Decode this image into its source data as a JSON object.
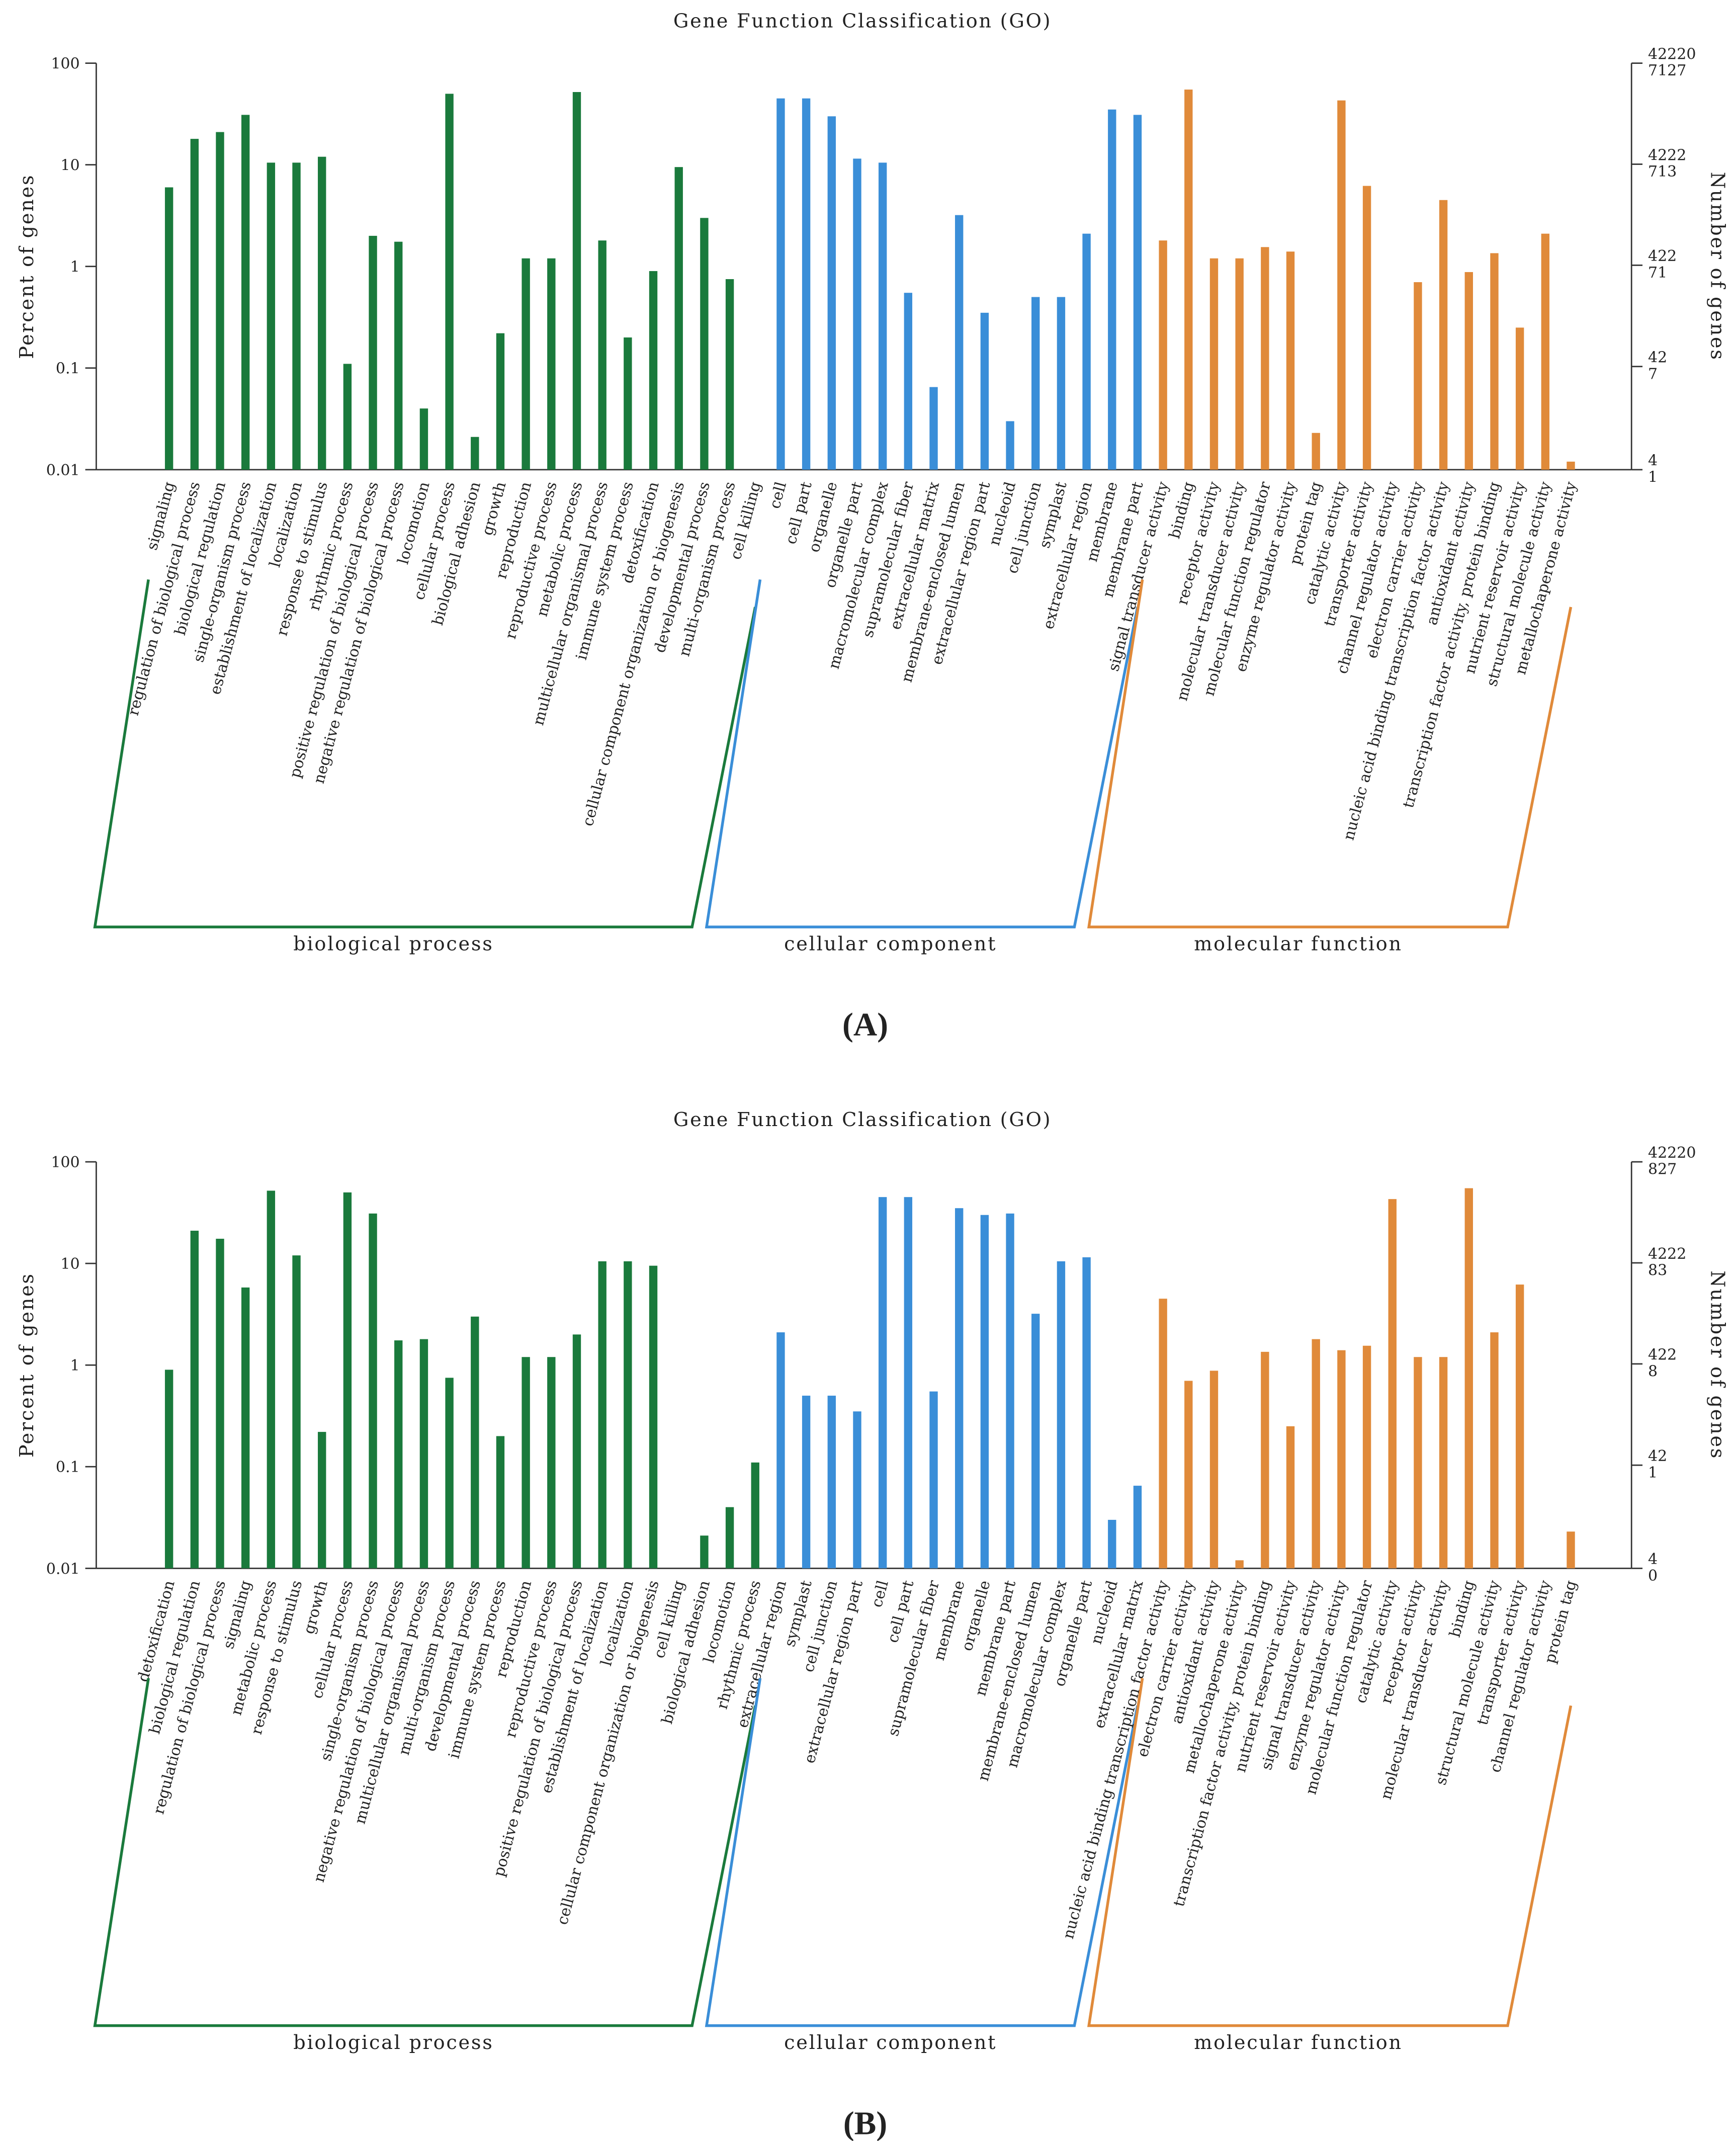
{
  "chart_data": [
    {
      "type": "bar",
      "title": "Gene Function Classification (GO)",
      "panel_label": "(A)",
      "ylabel": "Percent of genes",
      "y2label": "Number of genes",
      "log": true,
      "ylim": [
        0.01,
        100
      ],
      "yticks": [
        0.01,
        0.1,
        1,
        10,
        100
      ],
      "y2lim": [
        4,
        42220
      ],
      "y2ticks": [
        4,
        42,
        422,
        4222,
        42220
      ],
      "y2tick_sublabels": [
        "1",
        "7",
        "71",
        "713",
        "7127"
      ],
      "groups": [
        {
          "name": "biological process",
          "color": "#1a7a3c",
          "categories": [
            "signaling",
            "regulation of biological process",
            "biological regulation",
            "single-organism process",
            "establishment of localization",
            "localization",
            "response to stimulus",
            "rhythmic process",
            "positive regulation of biological process",
            "negative regulation of biological process",
            "locomotion",
            "cellular process",
            "biological adhesion",
            "growth",
            "reproduction",
            "reproductive process",
            "metabolic process",
            "multicellular organismal process",
            "immune system process",
            "detoxification",
            "cellular component organization or biogenesis",
            "developmental process",
            "multi-organism process",
            "cell killing"
          ],
          "values": [
            6,
            18,
            21,
            31,
            10.5,
            10.5,
            12,
            0.11,
            2,
            1.75,
            0.04,
            50,
            0.021,
            0.22,
            1.2,
            1.2,
            52,
            1.8,
            0.2,
            0.9,
            9.5,
            3,
            0.75,
            null
          ]
        },
        {
          "name": "cellular component",
          "color": "#3a8ed8",
          "categories": [
            "cell",
            "cell part",
            "organelle",
            "organelle part",
            "macromolecular complex",
            "supramolecular fiber",
            "extracellular matrix",
            "membrane-enclosed lumen",
            "extracellular region part",
            "nucleoid",
            "cell junction",
            "symplast",
            "extracellular region",
            "membrane",
            "membrane part"
          ],
          "values": [
            45,
            45,
            30,
            11.5,
            10.5,
            0.55,
            0.065,
            3.2,
            0.35,
            0.03,
            0.5,
            0.5,
            2.1,
            35,
            31
          ]
        },
        {
          "name": "molecular function",
          "color": "#e08a3a",
          "categories": [
            "signal transducer activity",
            "binding",
            "receptor activity",
            "molecular transducer activity",
            "molecular function regulator",
            "enzyme regulator activity",
            "protein tag",
            "catalytic activity",
            "transporter activity",
            "channel regulator activity",
            "electron carrier activity",
            "nucleic acid binding transcription factor activity",
            "antioxidant activity",
            "transcription factor activity, protein binding",
            "nutrient reservoir activity",
            "structural molecule activity",
            "metallochaperone activity"
          ],
          "values": [
            1.8,
            55,
            1.2,
            1.2,
            1.55,
            1.4,
            0.023,
            43,
            6.2,
            null,
            0.7,
            4.5,
            0.88,
            1.35,
            0.25,
            2.1,
            0.012
          ]
        }
      ]
    },
    {
      "type": "bar",
      "title": "Gene Function Classification (GO)",
      "panel_label": "(B)",
      "ylabel": "Percent of genes",
      "y2label": "Number of genes",
      "log": true,
      "ylim": [
        0.01,
        100
      ],
      "yticks": [
        0.01,
        0.1,
        1,
        10,
        100
      ],
      "y2lim": [
        4,
        42220
      ],
      "y2ticks": [
        4,
        42,
        422,
        4222,
        42220
      ],
      "y2tick_sublabels": [
        "0",
        "1",
        "8",
        "83",
        "827"
      ],
      "groups": [
        {
          "name": "biological process",
          "color": "#1a7a3c",
          "categories": [
            "detoxification",
            "biological regulation",
            "regulation of biological process",
            "signaling",
            "metabolic process",
            "response to stimulus",
            "growth",
            "cellular process",
            "single-organism process",
            "negative regulation of biological process",
            "multicellular organismal process",
            "multi-organism process",
            "developmental process",
            "immune system process",
            "reproduction",
            "reproductive process",
            "positive regulation of biological process",
            "establishment of localization",
            "localization",
            "cellular component organization or biogenesis",
            "cell killing",
            "biological adhesion",
            "locomotion",
            "rhythmic process"
          ],
          "values": [
            0.9,
            21,
            17.5,
            5.8,
            52,
            12,
            0.22,
            50,
            31,
            1.75,
            1.8,
            0.75,
            3,
            0.2,
            1.2,
            1.2,
            2,
            10.5,
            10.5,
            9.5,
            null,
            0.021,
            0.04,
            0.11
          ]
        },
        {
          "name": "cellular component",
          "color": "#3a8ed8",
          "categories": [
            "extracellular region",
            "symplast",
            "cell junction",
            "extracellular region part",
            "cell",
            "cell part",
            "supramolecular fiber",
            "membrane",
            "organelle",
            "membrane part",
            "membrane-enclosed lumen",
            "macromolecular complex",
            "organelle part",
            "nucleoid",
            "extracellular matrix"
          ],
          "values": [
            2.1,
            0.5,
            0.5,
            0.35,
            45,
            45,
            0.55,
            35,
            30,
            31,
            3.2,
            10.5,
            11.5,
            0.03,
            0.065
          ]
        },
        {
          "name": "molecular function",
          "color": "#e08a3a",
          "categories": [
            "nucleic acid binding transcription factor activity",
            "electron carrier activity",
            "antioxidant activity",
            "metallochaperone activity",
            "transcription factor activity, protein binding",
            "nutrient reservoir activity",
            "signal transducer activity",
            "enzyme regulator activity",
            "molecular function regulator",
            "catalytic activity",
            "receptor activity",
            "molecular transducer activity",
            "binding",
            "structural molecule activity",
            "transporter activity",
            "channel regulator activity",
            "protein tag"
          ],
          "values": [
            4.5,
            0.7,
            0.88,
            0.012,
            1.35,
            0.25,
            1.8,
            1.4,
            1.55,
            43,
            1.2,
            1.2,
            55,
            2.1,
            6.2,
            null,
            0.023
          ]
        }
      ]
    }
  ]
}
